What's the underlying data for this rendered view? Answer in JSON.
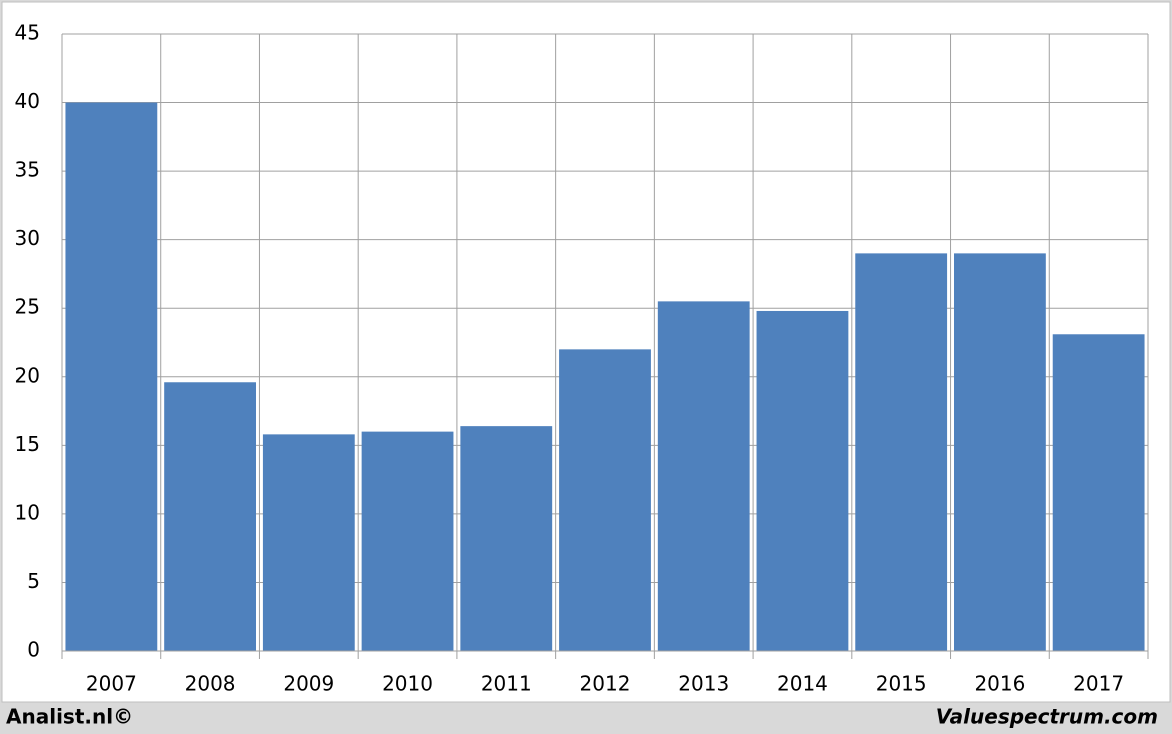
{
  "chart_data": {
    "type": "bar",
    "categories": [
      "2007",
      "2008",
      "2009",
      "2010",
      "2011",
      "2012",
      "2013",
      "2014",
      "2015",
      "2016",
      "2017"
    ],
    "values": [
      40.0,
      19.6,
      15.8,
      16.0,
      16.4,
      22.0,
      25.5,
      24.8,
      29.0,
      29.0,
      23.1
    ],
    "color": "#4f81bd",
    "ylim": [
      0,
      45
    ],
    "yticks": [
      0,
      5,
      10,
      15,
      20,
      25,
      30,
      35,
      40,
      45
    ],
    "grid": true
  },
  "footer": {
    "left": "Analist.nl©",
    "right": "Valuespectrum.com"
  }
}
